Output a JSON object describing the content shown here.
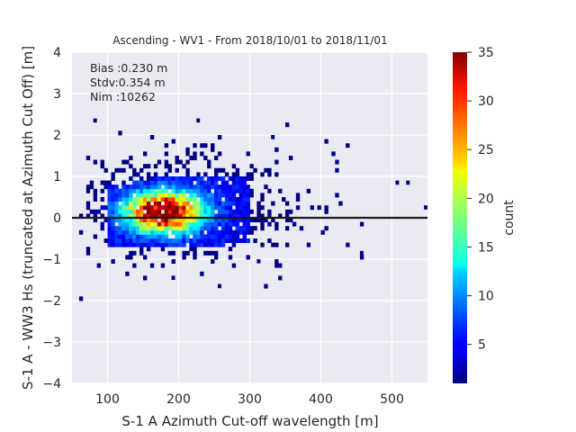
{
  "chart_data": {
    "type": "heatmap",
    "title": "Ascending - WV1 - From 2018/10/01 to 2018/11/01",
    "xlabel": "S-1 A Azimuth Cut-off wavelength [m]",
    "ylabel": "S-1 A - WW3 Hs (truncated at Azimuth Cut Off) [m]",
    "xlim": [
      50,
      550
    ],
    "ylim": [
      -4,
      4
    ],
    "xticks": [
      "100",
      "200",
      "300",
      "400",
      "500"
    ],
    "yticks": [
      "−4",
      "−3",
      "−2",
      "−1",
      "0",
      "1",
      "2",
      "3",
      "4"
    ],
    "grid": true,
    "reference_line_y": 0,
    "annotation": [
      "Bias :0.230 m",
      "Stdv:0.354 m",
      "Nim :10262"
    ],
    "colorbar": {
      "label": "count",
      "colormap": "jet",
      "range": [
        1,
        35
      ],
      "ticks": [
        "5",
        "10",
        "15",
        "20",
        "25",
        "30",
        "35"
      ]
    },
    "density_peak": {
      "x": 180,
      "y": 0.15,
      "count": 35
    },
    "outliers": [
      [
        505,
        0.8
      ],
      [
        520,
        0.8
      ],
      [
        545,
        0.2
      ],
      [
        455,
        -0.9
      ],
      [
        225,
        2.3
      ],
      [
        310,
        -1.1
      ],
      [
        255,
        -1.7
      ],
      [
        80,
        2.3
      ],
      [
        190,
        -1.5
      ],
      [
        330,
        1.9
      ]
    ]
  }
}
